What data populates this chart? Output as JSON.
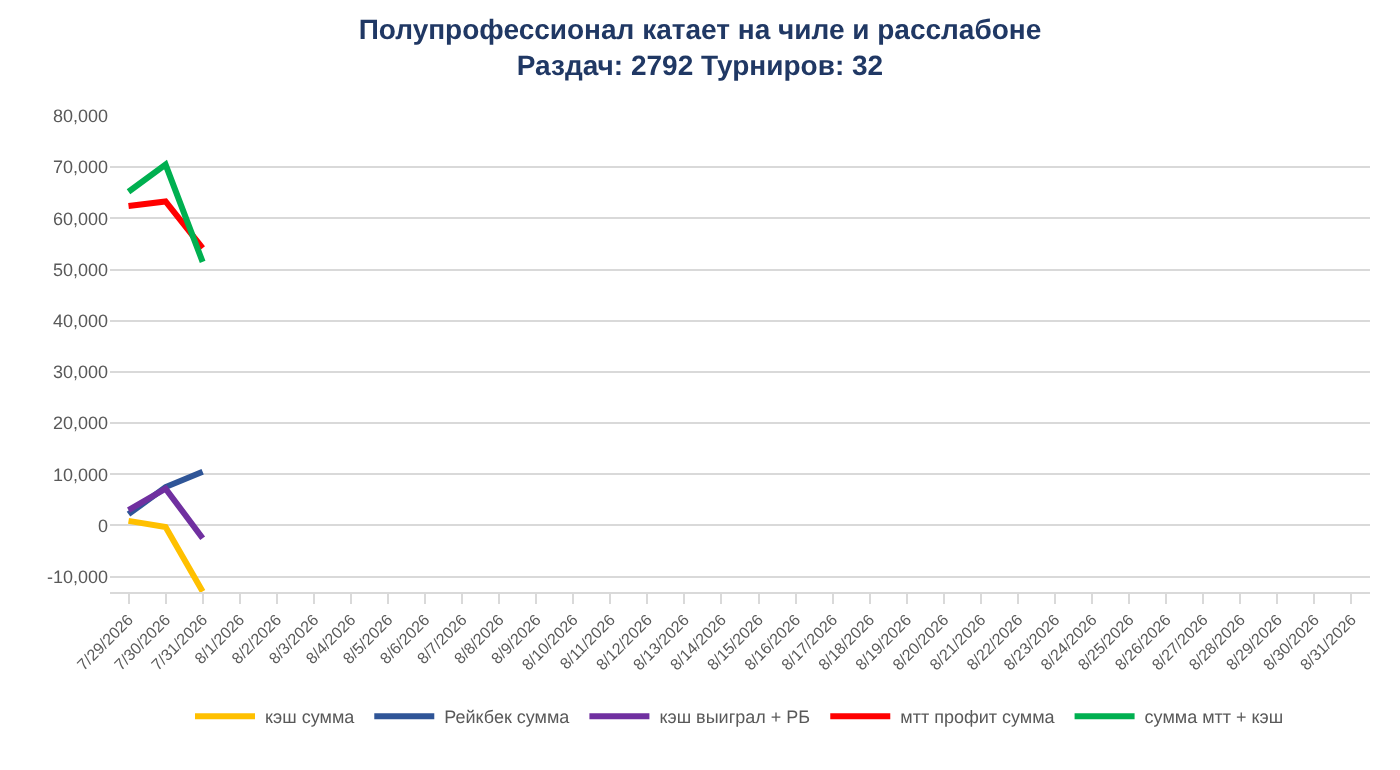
{
  "chart_data": {
    "type": "line",
    "title": "Полупрофессионал катает на чиле и расслабоне",
    "subtitle": "Раздач: 2792 Турниров: 32",
    "categories": [
      "7/29/2026",
      "7/30/2026",
      "7/31/2026",
      "8/1/2026",
      "8/2/2026",
      "8/3/2026",
      "8/4/2026",
      "8/5/2026",
      "8/6/2026",
      "8/7/2026",
      "8/8/2026",
      "8/9/2026",
      "8/10/2026",
      "8/11/2026",
      "8/12/2026",
      "8/13/2026",
      "8/14/2026",
      "8/15/2026",
      "8/16/2026",
      "8/17/2026",
      "8/18/2026",
      "8/19/2026",
      "8/20/2026",
      "8/21/2026",
      "8/22/2026",
      "8/23/2026",
      "8/24/2026",
      "8/25/2026",
      "8/26/2026",
      "8/27/2026",
      "8/28/2026",
      "8/29/2026",
      "8/30/2026",
      "8/31/2026"
    ],
    "series": [
      {
        "name": "кэш сумма",
        "color": "#ffc000",
        "values": [
          900,
          -300,
          -12900,
          null,
          null,
          null,
          null,
          null,
          null,
          null,
          null,
          null,
          null,
          null,
          null,
          null,
          null,
          null,
          null,
          null,
          null,
          null,
          null,
          null,
          null,
          null,
          null,
          null,
          null,
          null,
          null,
          null,
          null,
          null
        ]
      },
      {
        "name": "Рейкбек сумма",
        "color": "#2f5597",
        "values": [
          2200,
          7500,
          10500,
          null,
          null,
          null,
          null,
          null,
          null,
          null,
          null,
          null,
          null,
          null,
          null,
          null,
          null,
          null,
          null,
          null,
          null,
          null,
          null,
          null,
          null,
          null,
          null,
          null,
          null,
          null,
          null,
          null,
          null,
          null
        ]
      },
      {
        "name": "кэш выиграл + РБ",
        "color": "#7030a0",
        "values": [
          3000,
          7200,
          -2500,
          null,
          null,
          null,
          null,
          null,
          null,
          null,
          null,
          null,
          null,
          null,
          null,
          null,
          null,
          null,
          null,
          null,
          null,
          null,
          null,
          null,
          null,
          null,
          null,
          null,
          null,
          null,
          null,
          null,
          null,
          null
        ]
      },
      {
        "name": "мтт профит сумма",
        "color": "#ff0000",
        "values": [
          62400,
          63300,
          54200,
          null,
          null,
          null,
          null,
          null,
          null,
          null,
          null,
          null,
          null,
          null,
          null,
          null,
          null,
          null,
          null,
          null,
          null,
          null,
          null,
          null,
          null,
          null,
          null,
          null,
          null,
          null,
          null,
          null,
          null,
          null
        ]
      },
      {
        "name": "сумма мтт + кэш",
        "color": "#00b050",
        "values": [
          65200,
          70500,
          51500,
          null,
          null,
          null,
          null,
          null,
          null,
          null,
          null,
          null,
          null,
          null,
          null,
          null,
          null,
          null,
          null,
          null,
          null,
          null,
          null,
          null,
          null,
          null,
          null,
          null,
          null,
          null,
          null,
          null,
          null,
          null
        ]
      }
    ],
    "ylim": [
      -13000,
      80000
    ],
    "yticks": [
      {
        "value": -10000,
        "label": "-10,000"
      },
      0,
      {
        "value": 10000,
        "label": "10,000"
      },
      {
        "value": 20000,
        "label": "20,000"
      },
      {
        "value": 30000,
        "label": "30,000"
      },
      {
        "value": 40000,
        "label": "40,000"
      },
      {
        "value": 50000,
        "label": "50,000"
      },
      {
        "value": 60000,
        "label": "60,000"
      },
      {
        "value": 70000,
        "label": "70,000"
      },
      {
        "value": 80000,
        "label": "80,000"
      }
    ],
    "grid": "y",
    "legend": "bottom",
    "marker": "none",
    "line_style": "solid"
  }
}
